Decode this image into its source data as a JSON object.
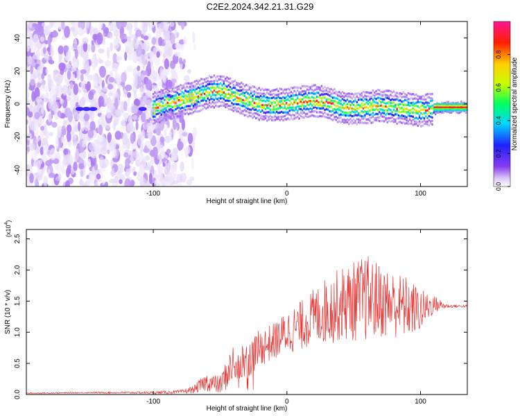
{
  "title": "C2E2.2024.342.21.31.G29",
  "chart_data": [
    {
      "type": "heatmap",
      "xlabel": "Height of straight line (km)",
      "ylabel": "Frequency (Hz)",
      "xlim": [
        -195,
        135
      ],
      "ylim": [
        -50,
        50
      ],
      "x_ticks": [
        -100,
        0,
        100
      ],
      "y_ticks": [
        -40,
        -20,
        0,
        20,
        40
      ],
      "colorbar": {
        "label": "Normalized spectral amplitude",
        "range": [
          0,
          1
        ],
        "ticks": [
          "0.0",
          "0.2",
          "0.4",
          "0.6",
          "0.8"
        ],
        "colormap": [
          "#ffffff",
          "#d9c8f5",
          "#8a3cf0",
          "#2020ff",
          "#00d8ff",
          "#00ff60",
          "#c8ff00",
          "#ffd000",
          "#ff2000",
          "#ff1493"
        ]
      },
      "signal_track": {
        "x": [
          -100,
          -90,
          -80,
          -70,
          -60,
          -50,
          -40,
          -30,
          -20,
          -10,
          0,
          10,
          20,
          30,
          40,
          50,
          60,
          70,
          80,
          90,
          100,
          110,
          120,
          135
        ],
        "y": [
          -3,
          0,
          2,
          4,
          7,
          8,
          5,
          2,
          0,
          -1,
          0,
          1,
          2,
          1,
          -2,
          -3,
          -2,
          -1,
          -2,
          -3,
          -4,
          -3,
          -2,
          -2
        ]
      },
      "noise_region_x": [
        -195,
        -75
      ]
    },
    {
      "type": "line",
      "xlabel": "Height of straight line (km)",
      "ylabel": "SNR (10 * v/v)",
      "y_multiplier": "(x10",
      "y_multiplier_exp": "4",
      "y_multiplier_close": ")",
      "xlim": [
        -195,
        135
      ],
      "ylim": [
        0,
        2.65
      ],
      "x_ticks": [
        -100,
        0,
        100
      ],
      "y_ticks": [
        "0.0",
        "0.5",
        "1.0",
        "1.5",
        "2.0",
        "2.5"
      ],
      "series": [
        {
          "color": "#e8302e",
          "envelope_x": [
            -195,
            -150,
            -100,
            -80,
            -70,
            -60,
            -50,
            -40,
            -30,
            -20,
            -10,
            0,
            10,
            20,
            30,
            40,
            50,
            60,
            70,
            80,
            90,
            100,
            110,
            120,
            135
          ],
          "envelope_mean": [
            0.02,
            0.03,
            0.03,
            0.04,
            0.08,
            0.2,
            0.15,
            0.5,
            0.55,
            0.75,
            0.85,
            1.0,
            1.1,
            1.25,
            1.35,
            1.45,
            1.5,
            1.55,
            1.5,
            1.45,
            1.4,
            1.35,
            1.45,
            1.42,
            1.42
          ],
          "envelope_amp": [
            0.01,
            0.01,
            0.02,
            0.03,
            0.06,
            0.15,
            0.15,
            0.35,
            0.3,
            0.3,
            0.3,
            0.35,
            0.4,
            0.45,
            0.55,
            0.6,
            0.65,
            0.7,
            0.6,
            0.55,
            0.5,
            0.35,
            0.15,
            0.03,
            0.02
          ]
        }
      ]
    }
  ]
}
